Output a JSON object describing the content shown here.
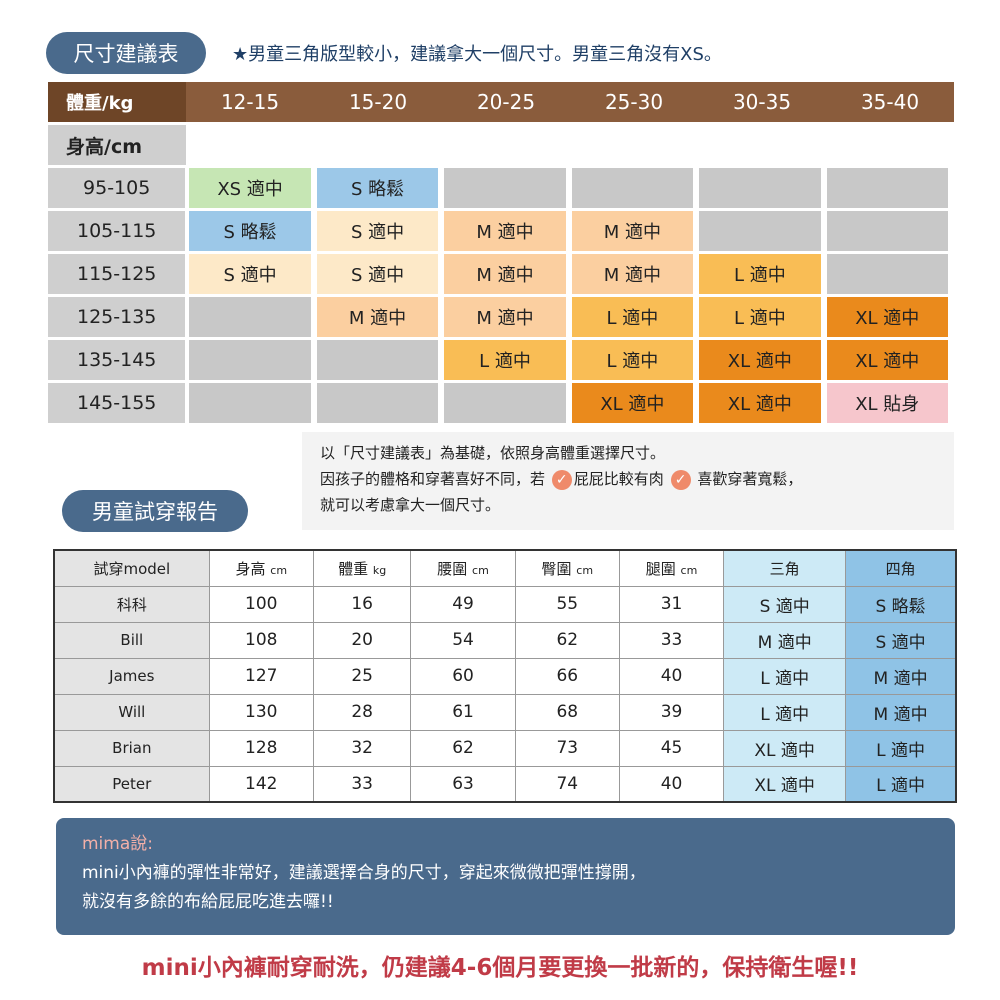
{
  "size_chart": {
    "badge": "尺寸建議表",
    "note": "★男童三角版型較小，建議拿大一個尺寸。男童三角沒有XS。",
    "weight_label": "體重/kg",
    "height_label": "身高/cm",
    "weights": [
      "12-15",
      "15-20",
      "20-25",
      "25-30",
      "30-35",
      "35-40"
    ],
    "rows": [
      {
        "height": "95-105",
        "cells": [
          {
            "t": "XS 適中",
            "k": "xs"
          },
          {
            "t": "S 略鬆",
            "k": "sl"
          },
          {
            "t": "",
            "k": "empty"
          },
          {
            "t": "",
            "k": "empty"
          },
          {
            "t": "",
            "k": "empty"
          },
          {
            "t": "",
            "k": "empty"
          }
        ]
      },
      {
        "height": "105-115",
        "cells": [
          {
            "t": "S 略鬆",
            "k": "sl"
          },
          {
            "t": "S 適中",
            "k": "s"
          },
          {
            "t": "M 適中",
            "k": "m"
          },
          {
            "t": "M 適中",
            "k": "m"
          },
          {
            "t": "",
            "k": "empty"
          },
          {
            "t": "",
            "k": "empty"
          }
        ]
      },
      {
        "height": "115-125",
        "cells": [
          {
            "t": "S 適中",
            "k": "s"
          },
          {
            "t": "S 適中",
            "k": "s"
          },
          {
            "t": "M 適中",
            "k": "m"
          },
          {
            "t": "M 適中",
            "k": "m"
          },
          {
            "t": "L 適中",
            "k": "l"
          },
          {
            "t": "",
            "k": "empty"
          }
        ]
      },
      {
        "height": "125-135",
        "cells": [
          {
            "t": "",
            "k": "empty"
          },
          {
            "t": "M 適中",
            "k": "m"
          },
          {
            "t": "M 適中",
            "k": "m"
          },
          {
            "t": "L 適中",
            "k": "l"
          },
          {
            "t": "L 適中",
            "k": "l"
          },
          {
            "t": "XL 適中",
            "k": "xl"
          }
        ]
      },
      {
        "height": "135-145",
        "cells": [
          {
            "t": "",
            "k": "empty"
          },
          {
            "t": "",
            "k": "empty"
          },
          {
            "t": "L 適中",
            "k": "l"
          },
          {
            "t": "L 適中",
            "k": "l"
          },
          {
            "t": "XL 適中",
            "k": "xl"
          },
          {
            "t": "XL 適中",
            "k": "xl"
          }
        ]
      },
      {
        "height": "145-155",
        "cells": [
          {
            "t": "",
            "k": "empty"
          },
          {
            "t": "",
            "k": "empty"
          },
          {
            "t": "",
            "k": "empty"
          },
          {
            "t": "XL 適中",
            "k": "xl"
          },
          {
            "t": "XL 適中",
            "k": "xl"
          },
          {
            "t": "XL 貼身",
            "k": "xlt"
          }
        ]
      }
    ]
  },
  "memo": {
    "line1": "以「尺寸建議表」為基礎，依照身高體重選擇尺寸。",
    "line2a": "因孩子的體格和穿著喜好不同，若",
    "cond1": "屁屁比較有肉",
    "cond2": "喜歡穿著寬鬆，",
    "line3": "就可以考慮拿大一個尺寸。"
  },
  "report": {
    "badge": "男童試穿報告",
    "headers": [
      {
        "n": "試穿model",
        "u": ""
      },
      {
        "n": "身高",
        "u": "cm"
      },
      {
        "n": "體重",
        "u": "kg"
      },
      {
        "n": "腰圍",
        "u": "cm"
      },
      {
        "n": "臀圍",
        "u": "cm"
      },
      {
        "n": "腿圍",
        "u": "cm"
      },
      {
        "n": "三角",
        "u": ""
      },
      {
        "n": "四角",
        "u": ""
      }
    ],
    "rows": [
      [
        "科科",
        "100",
        "16",
        "49",
        "55",
        "31",
        "S 適中",
        "S 略鬆"
      ],
      [
        "Bill",
        "108",
        "20",
        "54",
        "62",
        "33",
        "M 適中",
        "S 適中"
      ],
      [
        "James",
        "127",
        "25",
        "60",
        "66",
        "40",
        "L 適中",
        "M 適中"
      ],
      [
        "Will",
        "130",
        "28",
        "61",
        "68",
        "39",
        "L 適中",
        "M 適中"
      ],
      [
        "Brian",
        "128",
        "32",
        "62",
        "73",
        "45",
        "XL 適中",
        "L 適中"
      ],
      [
        "Peter",
        "142",
        "33",
        "63",
        "74",
        "40",
        "XL 適中",
        "L 適中"
      ]
    ]
  },
  "mima": {
    "title": "mima說:",
    "line1": "mini小內褲的彈性非常好，建議選擇合身的尺寸，穿起來微微把彈性撐開，",
    "line2": "就沒有多餘的布給屁屁吃進去囉!!"
  },
  "footer": "mini小內褲耐穿耐洗，仍建議4-6個月要更換一批新的，保持衛生喔!!"
}
